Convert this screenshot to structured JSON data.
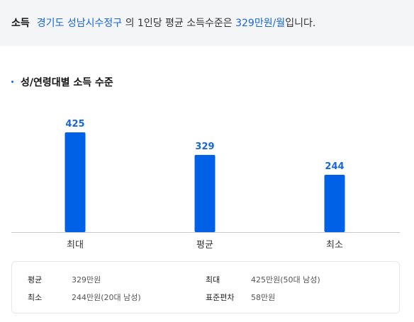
{
  "summary": {
    "label": "소득",
    "region": "경기도 성남시수정구",
    "text_mid": " 의 1인당 평균 소득수준은 ",
    "amount": "329만원/월",
    "text_end": "입니다."
  },
  "section": {
    "title": "성/연령대별 소득 수준"
  },
  "chart_data": {
    "type": "bar",
    "categories": [
      "최대",
      "평균",
      "최소"
    ],
    "values": [
      425,
      329,
      244
    ],
    "value_labels": [
      "425",
      "329",
      "244"
    ],
    "title": "",
    "xlabel": "",
    "ylabel": "",
    "ylim": [
      0,
      425
    ],
    "grid": false,
    "colors": {
      "bar": "#0060e6",
      "value_label": "#1866e0"
    }
  },
  "stats": {
    "avg_label": "평균",
    "avg_value": "329만원",
    "max_label": "최대",
    "max_value": "425만원(50대 남성)",
    "min_label": "최소",
    "min_value": "244만원(20대 남성)",
    "std_label": "표준편차",
    "std_value": "58만원"
  },
  "colors": {
    "accent": "#1866e0",
    "summary_bg": "#f4f5f7"
  }
}
